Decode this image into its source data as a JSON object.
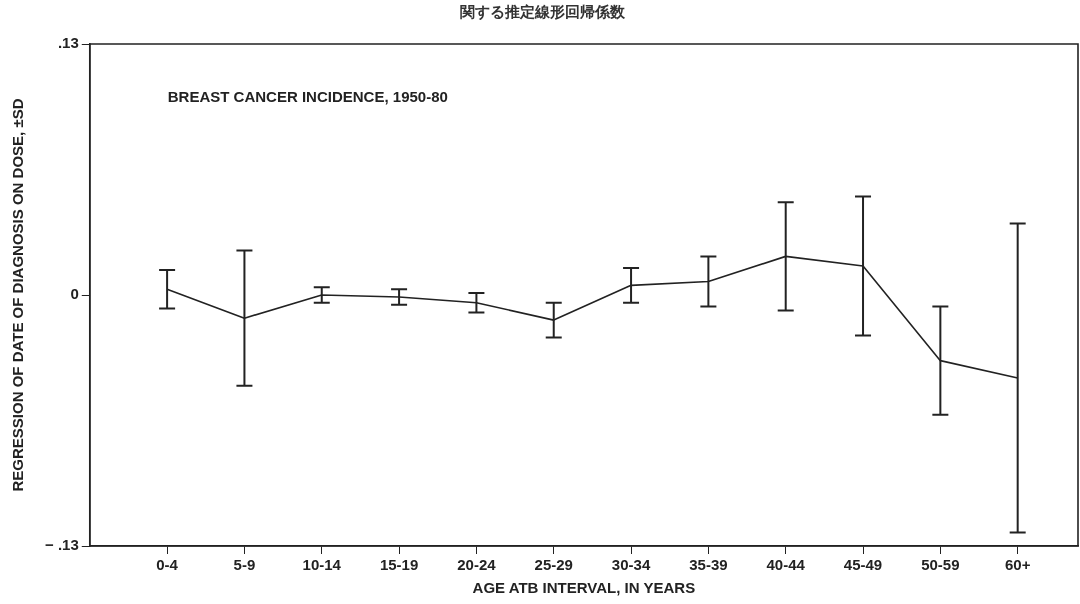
{
  "chart_data": {
    "type": "line",
    "title": "関する推定線形回帰係数",
    "xlabel": "AGE ATB INTERVAL, IN YEARS",
    "ylabel": "REGRESSION OF DATE OF DIAGNOSIS ON DOSE, ±SD",
    "annotations": [
      "BREAST CANCER INCIDENCE, 1950-80"
    ],
    "categories": [
      "0-4",
      "5-9",
      "10-14",
      "15-19",
      "20-24",
      "25-29",
      "30-34",
      "35-39",
      "40-44",
      "45-49",
      "50-59",
      "60+"
    ],
    "series": [
      {
        "color": "#222222",
        "values": [
          0.003,
          -0.012,
          0.0,
          -0.001,
          -0.004,
          -0.013,
          0.005,
          0.007,
          0.02,
          0.015,
          -0.034,
          -0.043
        ],
        "errors": [
          0.01,
          0.035,
          0.004,
          0.004,
          0.005,
          0.009,
          0.009,
          0.013,
          0.028,
          0.036,
          0.028,
          0.08
        ]
      }
    ],
    "ylim": [
      -0.13,
      0.13
    ],
    "yticks": [
      {
        "value": 0.13,
        "label": ".13"
      },
      0,
      {
        "value": -0.13,
        "label": "− .13"
      }
    ],
    "grid": false,
    "legend": false,
    "marker": "none",
    "line_style": "solid"
  }
}
